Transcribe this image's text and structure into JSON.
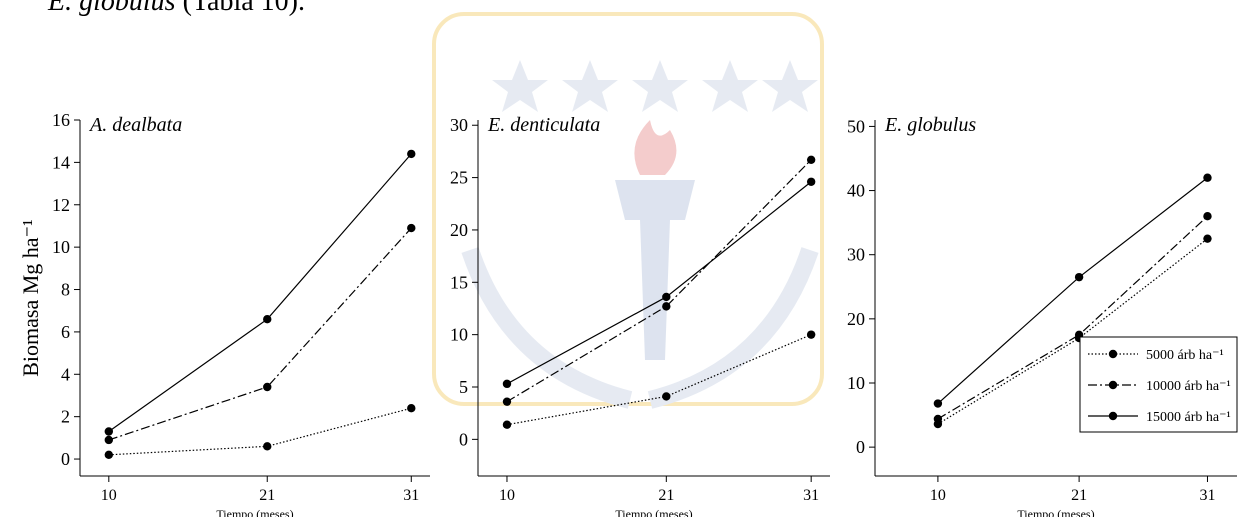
{
  "header": {
    "species": "E. globulus",
    "text": "(Tabla 10)."
  },
  "chart_data": [
    {
      "type": "line",
      "title": "A. dealbata",
      "y_label": "Biomasa Mg ha⁻¹",
      "x_label": "Tiempo (meses)",
      "x": [
        10,
        21,
        31
      ],
      "xlim": [
        8,
        32.3
      ],
      "xticks": [
        10,
        21,
        31
      ],
      "ylim": [
        -0.8,
        16
      ],
      "yticks": [
        0,
        2,
        4,
        6,
        8,
        10,
        12,
        14,
        16
      ],
      "series": [
        {
          "color": "#000000",
          "line_style": "dotted",
          "values": [
            0.2,
            0.6,
            2.4
          ]
        },
        {
          "color": "#000000",
          "line_style": "dashdot",
          "values": [
            0.9,
            3.4,
            10.9
          ]
        },
        {
          "color": "#000000",
          "line_style": "solid",
          "values": [
            1.3,
            6.6,
            14.4
          ]
        }
      ]
    },
    {
      "type": "line",
      "title": "E. denticulata",
      "x_label": "Tiempo (meses)",
      "x": [
        10,
        21,
        31
      ],
      "xlim": [
        8,
        32.3
      ],
      "xticks": [
        10,
        21,
        31
      ],
      "ylim": [
        -3.5,
        30.5
      ],
      "yticks": [
        0,
        5,
        10,
        15,
        20,
        25,
        30
      ],
      "series": [
        {
          "color": "#000000",
          "line_style": "dotted",
          "values": [
            1.4,
            4.1,
            10.0
          ]
        },
        {
          "color": "#000000",
          "line_style": "dashdot",
          "values": [
            3.6,
            12.7,
            26.7
          ]
        },
        {
          "color": "#000000",
          "line_style": "solid",
          "values": [
            5.3,
            13.6,
            24.6
          ]
        }
      ]
    },
    {
      "type": "line",
      "title": "E. globulus",
      "x_label": "Tiempo (meses)",
      "x": [
        10,
        21,
        31
      ],
      "xlim": [
        5.1,
        33.3
      ],
      "xticks": [
        10,
        21,
        31
      ],
      "ylim": [
        -4.5,
        51
      ],
      "yticks": [
        0,
        10,
        20,
        30,
        40,
        50
      ],
      "legend": "lower right",
      "series": [
        {
          "name": "5000 árb ha⁻¹",
          "color": "#000000",
          "line_style": "dotted",
          "values": [
            3.6,
            17.0,
            32.5
          ]
        },
        {
          "name": "10000 árb ha⁻¹",
          "color": "#000000",
          "line_style": "dashdot",
          "values": [
            4.4,
            17.5,
            36.0
          ]
        },
        {
          "name": "15000 árb ha⁻¹",
          "color": "#000000",
          "line_style": "solid",
          "values": [
            6.8,
            26.5,
            42.0
          ]
        }
      ]
    }
  ]
}
